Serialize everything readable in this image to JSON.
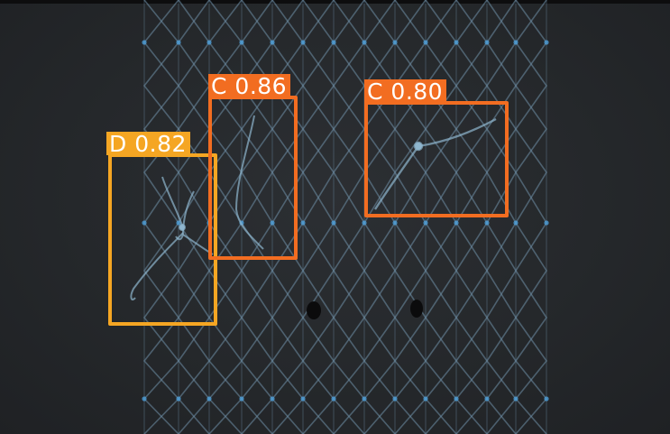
{
  "detections": [
    {
      "class": "D",
      "score": "0.82",
      "color": "#f5a623"
    },
    {
      "class": "C",
      "score": "0.86",
      "color": "#f26d21"
    },
    {
      "class": "C",
      "score": "0.80",
      "color": "#f26d21"
    }
  ]
}
